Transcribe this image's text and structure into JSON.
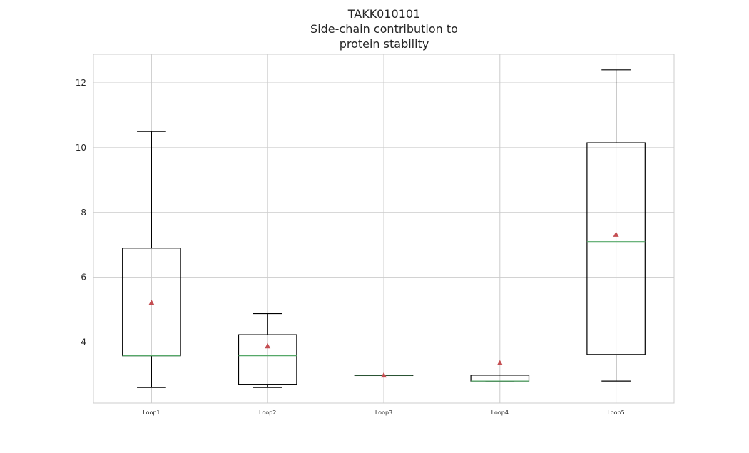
{
  "chart_data": {
    "type": "box",
    "title": [
      "TAKK010101",
      "Side-chain contribution to",
      "protein stability"
    ],
    "xlabel": "",
    "ylabel": "",
    "categories": [
      "Loop1",
      "Loop2",
      "Loop3",
      "Loop4",
      "Loop5"
    ],
    "yticks": [
      4,
      6,
      8,
      10,
      12
    ],
    "ylim": [
      2.12,
      12.88
    ],
    "grid": true,
    "boxes": [
      {
        "label": "Loop1",
        "whislo": 2.6,
        "q1": 3.58,
        "median": 3.58,
        "q3": 6.9,
        "whishi": 10.5,
        "mean": 5.22
      },
      {
        "label": "Loop2",
        "whislo": 2.6,
        "q1": 2.7,
        "median": 3.58,
        "q3": 4.23,
        "whishi": 4.88,
        "mean": 3.88
      },
      {
        "label": "Loop3",
        "whislo": 2.98,
        "q1": 2.98,
        "median": 2.98,
        "q3": 2.98,
        "whishi": 2.98,
        "mean": 2.98
      },
      {
        "label": "Loop4",
        "whislo": 2.8,
        "q1": 2.8,
        "median": 2.8,
        "q3": 2.98,
        "whishi": 2.98,
        "mean": 3.36
      },
      {
        "label": "Loop5",
        "whislo": 2.8,
        "q1": 3.62,
        "median": 7.1,
        "q3": 10.15,
        "whishi": 12.4,
        "mean": 7.32
      }
    ],
    "colors": {
      "box": "#000000",
      "median": "#55a868",
      "mean": "#c44e52",
      "grid": "#cccccc",
      "frame": "#cccccc"
    }
  }
}
